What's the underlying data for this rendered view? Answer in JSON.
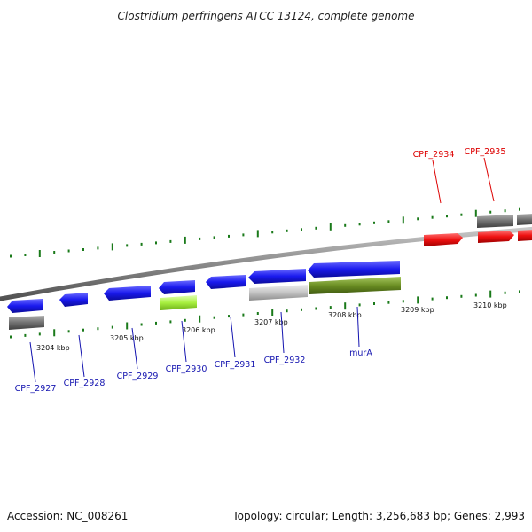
{
  "title": "Clostridium perfringens ATCC 13124, complete genome",
  "footer": {
    "accession": "Accession: NC_008261",
    "summary": "Topology: circular; Length: 3,256,683 bp; Genes: 2,993"
  },
  "colors": {
    "backbone": "#8a8a8a",
    "gene_forward_blue": "#1818e8",
    "gene_red": "#ee1111",
    "gene_grey": "#707070",
    "gene_lightgrey": "#c4c4c4",
    "gene_olive": "#6b8e23",
    "gene_lime": "#a8f040",
    "tick": "#1a7a1a",
    "label_blue": "#1515b0",
    "label_red": "#dd0000"
  },
  "scale_labels": [
    "3204 kbp",
    "3205 kbp",
    "3206 kbp",
    "3207 kbp",
    "3208 kbp",
    "3209 kbp",
    "3210 kbp"
  ],
  "genes": [
    {
      "label": "CPF_2927",
      "color": "blue"
    },
    {
      "label": "CPF_2928",
      "color": "blue"
    },
    {
      "label": "CPF_2929",
      "color": "blue"
    },
    {
      "label": "CPF_2930",
      "color": "blue"
    },
    {
      "label": "CPF_2931",
      "color": "blue"
    },
    {
      "label": "CPF_2932",
      "color": "blue"
    },
    {
      "label": "murA",
      "color": "blue"
    },
    {
      "label": "CPF_2934",
      "color": "red"
    },
    {
      "label": "CPF_2935",
      "color": "red"
    }
  ]
}
